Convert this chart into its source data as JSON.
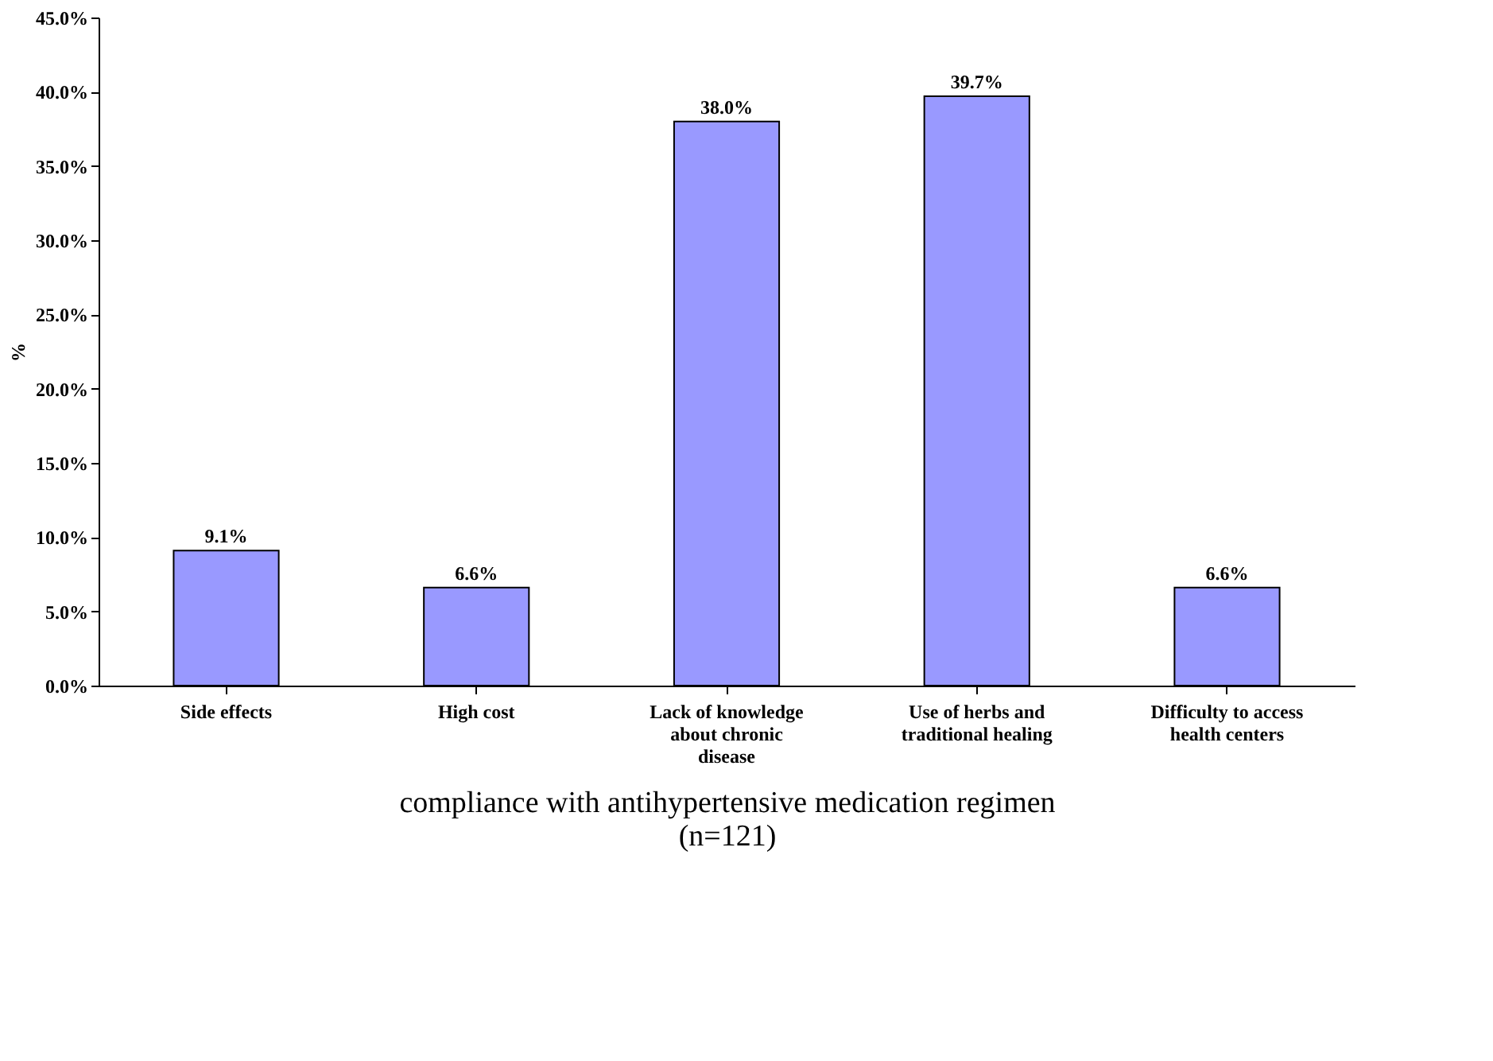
{
  "chart_data": {
    "type": "bar",
    "xlabel": "compliance with antihypertensive medication regimen (n=121)",
    "ylabel": "%",
    "categories": [
      "Side effects",
      "High cost",
      "Lack of knowledge about chronic disease",
      "Use of herbs and traditional healing",
      "Difficulty to access health centers"
    ],
    "values": [
      9.1,
      6.6,
      38.0,
      39.7,
      6.6
    ],
    "value_labels": [
      "9.1%",
      "6.6%",
      "38.0%",
      "39.7%",
      "6.6%"
    ],
    "color": "#9999ff",
    "ylim": [
      0,
      45
    ],
    "yticks": [
      {
        "value": 0,
        "label": "0.0%"
      },
      {
        "value": 5,
        "label": "5.0%"
      },
      {
        "value": 10,
        "label": "10.0%"
      },
      {
        "value": 15,
        "label": "15.0%"
      },
      {
        "value": 20,
        "label": "20.0%"
      },
      {
        "value": 25,
        "label": "25.0%"
      },
      {
        "value": 30,
        "label": "30.0%"
      },
      {
        "value": 35,
        "label": "35.0%"
      },
      {
        "value": 40,
        "label": "40.0%"
      },
      {
        "value": 45,
        "label": "45.0%"
      }
    ],
    "grid": false
  }
}
